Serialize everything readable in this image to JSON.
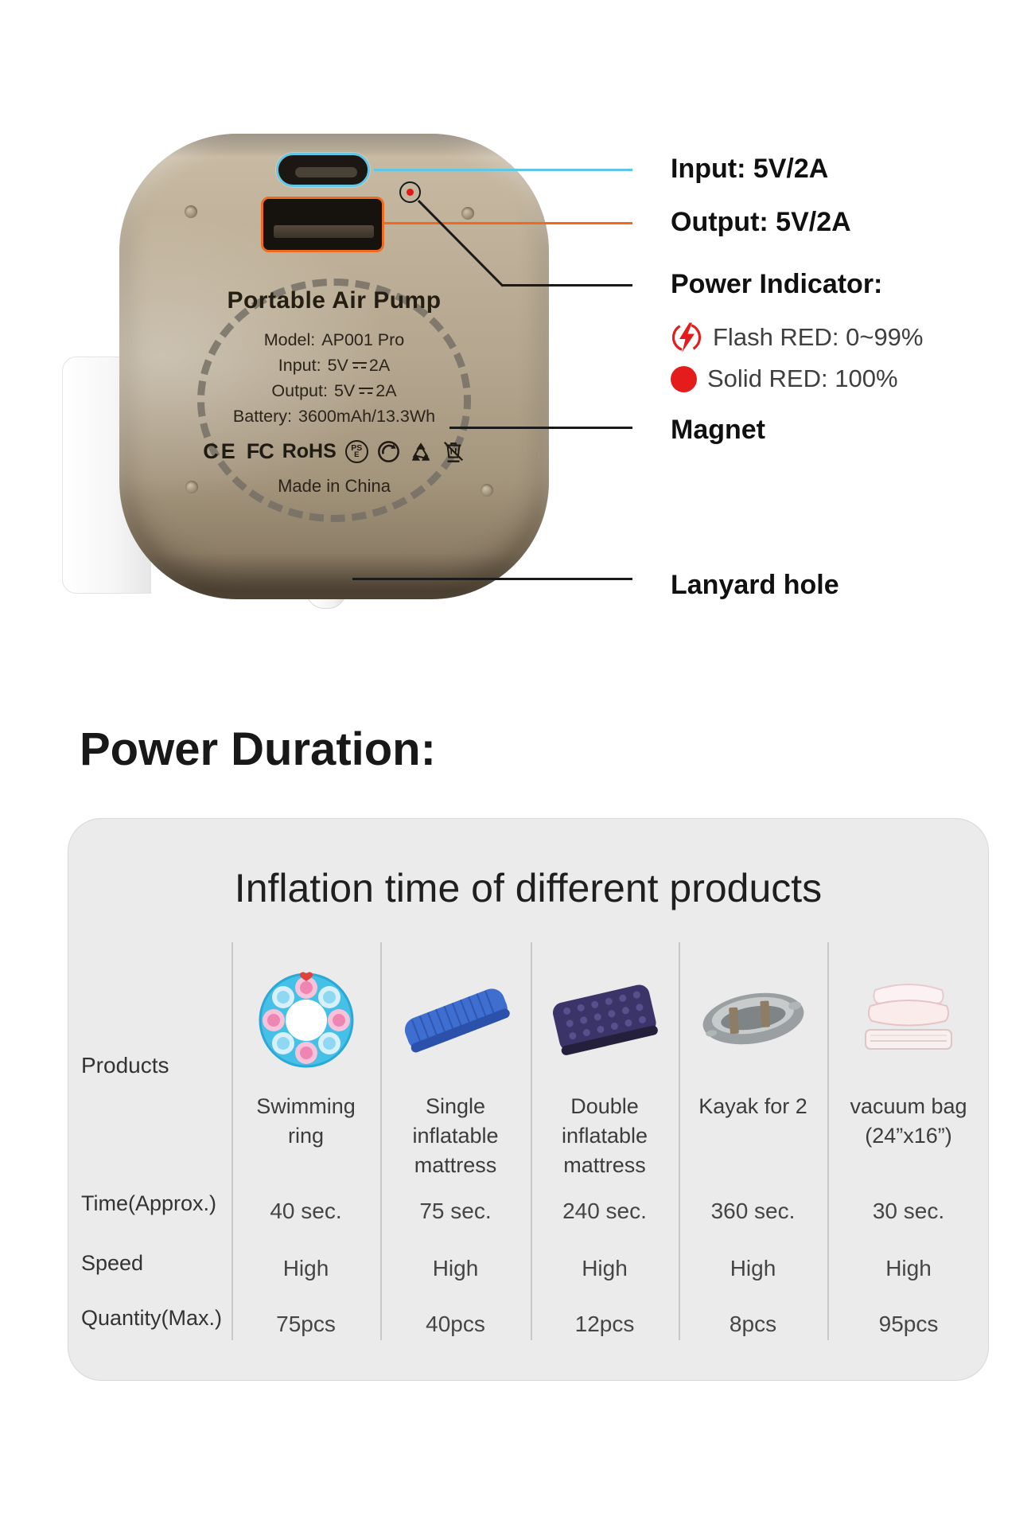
{
  "device": {
    "name_label": "Portable Air Pump",
    "specs": [
      {
        "label": "Model:",
        "value": "AP001 Pro"
      },
      {
        "label": "Input:",
        "value": "5V",
        "dc": true,
        "value2": "2A"
      },
      {
        "label": "Output:",
        "value": "5V",
        "dc": true,
        "value2": "2A"
      },
      {
        "label": "Battery:",
        "value": "3600mAh/13.3Wh"
      }
    ],
    "certs": {
      "ce": "CE",
      "fcc": "FC",
      "rohs": "RoHS",
      "pse_top": "PS",
      "pse_bottom": "E"
    },
    "cert_icon_names": [
      "ce-mark-icon",
      "fcc-mark-icon",
      "rohs-mark",
      "pse-mark-icon",
      "green-dot-icon",
      "recycle-icon",
      "weee-bin-icon"
    ],
    "made_in": "Made in China"
  },
  "callouts": {
    "input": "Input: 5V/2A",
    "output": "Output: 5V/2A",
    "power_indicator": "Power Indicator:",
    "flash_label": "Flash RED: 0~99%",
    "solid_label": "Solid RED: 100%",
    "magnet": "Magnet",
    "lanyard": "Lanyard hole"
  },
  "section_title": "Power Duration:",
  "table": {
    "title": "Inflation time of different products",
    "row_headers": [
      "Products",
      "Time(Approx.)",
      "Speed",
      "Quantity(Max.)"
    ],
    "products": [
      {
        "name": "Swimming ring",
        "icon": "swimming-ring-icon",
        "time": "40 sec.",
        "speed": "High",
        "quantity": "75pcs"
      },
      {
        "name": "Single inflatable mattress",
        "icon": "single-mattress-icon",
        "time": "75 sec.",
        "speed": "High",
        "quantity": "40pcs"
      },
      {
        "name": "Double inflatable mattress",
        "icon": "double-mattress-icon",
        "time": "240 sec.",
        "speed": "High",
        "quantity": "12pcs"
      },
      {
        "name": "Kayak for 2",
        "icon": "kayak-icon",
        "time": "360 sec.",
        "speed": "High",
        "quantity": "8pcs"
      },
      {
        "name": "vacuum bag (24”x16”)",
        "icon": "vacuum-bag-icon",
        "time": "30 sec.",
        "speed": "High",
        "quantity": "95pcs"
      }
    ]
  },
  "colors": {
    "accent_cyan": "#5fc6e6",
    "accent_orange": "#f2681c",
    "indicator_red": "#e51c1c",
    "device_body": "#b3a48d",
    "card_bg": "#ebebeb",
    "divider": "#c8c8c8",
    "heading_text": "#101010",
    "body_text": "#3f3f3f"
  }
}
